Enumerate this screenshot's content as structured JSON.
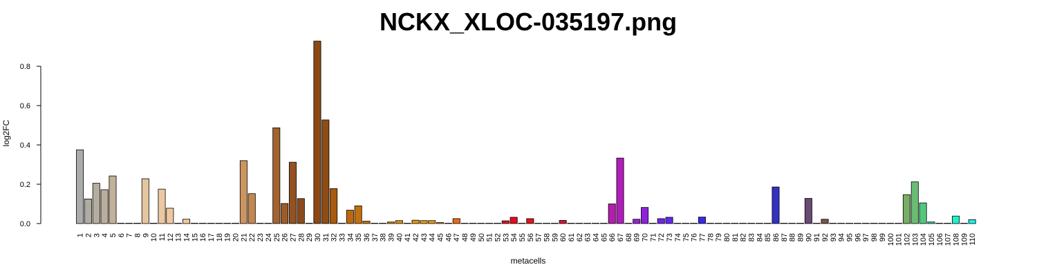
{
  "chart_data": {
    "type": "bar",
    "title": "NCKX_XLOC-035197.png",
    "xlabel": "metacells",
    "ylabel": "log2FC",
    "ylim": [
      0,
      0.93
    ],
    "yticks": [
      "0.0",
      "0.2",
      "0.4",
      "0.6",
      "0.8"
    ],
    "ytick_values": [
      0,
      0.2,
      0.4,
      0.6,
      0.8
    ],
    "grid": false,
    "categories": [
      "1",
      "2",
      "3",
      "4",
      "5",
      "6",
      "7",
      "8",
      "9",
      "10",
      "11",
      "12",
      "13",
      "14",
      "15",
      "16",
      "17",
      "18",
      "19",
      "20",
      "21",
      "22",
      "23",
      "24",
      "25",
      "26",
      "27",
      "28",
      "29",
      "30",
      "31",
      "32",
      "33",
      "34",
      "35",
      "36",
      "37",
      "38",
      "39",
      "40",
      "41",
      "42",
      "43",
      "44",
      "45",
      "46",
      "47",
      "48",
      "49",
      "50",
      "51",
      "52",
      "53",
      "54",
      "55",
      "56",
      "57",
      "58",
      "59",
      "60",
      "61",
      "62",
      "63",
      "64",
      "65",
      "66",
      "67",
      "68",
      "69",
      "70",
      "71",
      "72",
      "73",
      "74",
      "75",
      "76",
      "77",
      "78",
      "79",
      "80",
      "81",
      "82",
      "83",
      "84",
      "85",
      "86",
      "87",
      "88",
      "89",
      "90",
      "91",
      "92",
      "93",
      "94",
      "95",
      "96",
      "97",
      "98",
      "99",
      "100",
      "101",
      "102",
      "103",
      "104",
      "105",
      "106",
      "107",
      "108",
      "109",
      "110"
    ],
    "values": [
      0.375,
      0.125,
      0.205,
      0.172,
      0.242,
      0,
      0,
      0,
      0.228,
      0,
      0.175,
      0.078,
      0,
      0.022,
      0,
      0,
      0,
      0,
      0,
      0,
      0.32,
      0.152,
      0,
      0,
      0.487,
      0.102,
      0.312,
      0.127,
      0,
      0.928,
      0.527,
      0.178,
      0,
      0.068,
      0.09,
      0.012,
      0,
      0,
      0.008,
      0.015,
      0,
      0.017,
      0.015,
      0.015,
      0.005,
      0,
      0.025,
      0,
      0,
      0,
      0,
      0,
      0.014,
      0.032,
      0,
      0.025,
      0,
      0,
      0,
      0.016,
      0,
      0,
      0,
      0,
      0,
      0.1,
      0.333,
      0,
      0.022,
      0.082,
      0,
      0.025,
      0.032,
      0,
      0,
      0,
      0.033,
      0,
      0,
      0,
      0,
      0,
      0,
      0,
      0,
      0.186,
      0,
      0,
      0,
      0.128,
      0,
      0.022,
      0,
      0,
      0,
      0,
      0,
      0,
      0,
      0,
      0,
      0.147,
      0.212,
      0.105,
      0.008,
      0,
      0,
      0.038,
      0,
      0.02
    ],
    "colors": [
      "#ababab",
      "#b0aca4",
      "#b5ada0",
      "#bbae9c",
      "#c1b09a",
      "#c8b397",
      "#d1b994",
      "#dcc09a",
      "#e3c59e",
      "#e8c7a0",
      "#ecc8a2",
      "#efc8a0",
      "#f0c79e",
      "#f2c89b",
      "#f3c99a",
      "#f3c999",
      "#f2c797",
      "#f0c394",
      "#eebf90",
      "#eabb8b",
      "#cc9460",
      "#c28850",
      "#b97e46",
      "#ad733e",
      "#a3632f",
      "#9c5b29",
      "#935222",
      "#8c4a1c",
      "#8a4818",
      "#8a4915",
      "#8e4d14",
      "#a85a0e",
      "#b3610d",
      "#bd680e",
      "#c4700d",
      "#c8760d",
      "#cc7c0c",
      "#d2830e",
      "#d78a0f",
      "#dc910f",
      "#e0960f",
      "#e3980f",
      "#e89c0f",
      "#ea9810",
      "#eb9411",
      "#ec8c13",
      "#eb6a15",
      "#ea5a16",
      "#e9481a",
      "#e8391e",
      "#e72b22",
      "#e61f24",
      "#e51226",
      "#e30c22",
      "#e1111a",
      "#e01516",
      "#de1514",
      "#dc1722",
      "#da1a30",
      "#d8153c",
      "#d41348",
      "#cd1454",
      "#c6156a",
      "#c0177a",
      "#b91a8c",
      "#b41eac",
      "#b01eb9",
      "#a820c5",
      "#9c21d2",
      "#8e22dc",
      "#7f24e3",
      "#7225ea",
      "#6525ee",
      "#5826f1",
      "#4c25f1",
      "#4426ef",
      "#3b27ea",
      "#3428e0",
      "#3329d8",
      "#332ad0",
      "#332bca",
      "#332cc6",
      "#332dc2",
      "#332ec0",
      "#332fbd",
      "#3330c0",
      "#4a3a98",
      "#5a4288",
      "#63487a",
      "#684a72",
      "#6e4e60",
      "#7a5548",
      "#80593e",
      "#86603a",
      "#8a6a3c",
      "#8c733e",
      "#8e7c40",
      "#908742",
      "#909044",
      "#8a9a4a",
      "#80a252",
      "#76ae64",
      "#68bc74",
      "#50c87e",
      "#40d48c",
      "#34dea0",
      "#2ce8b6",
      "#22efcc",
      "#1ef2de",
      "#1af0ea"
    ]
  }
}
